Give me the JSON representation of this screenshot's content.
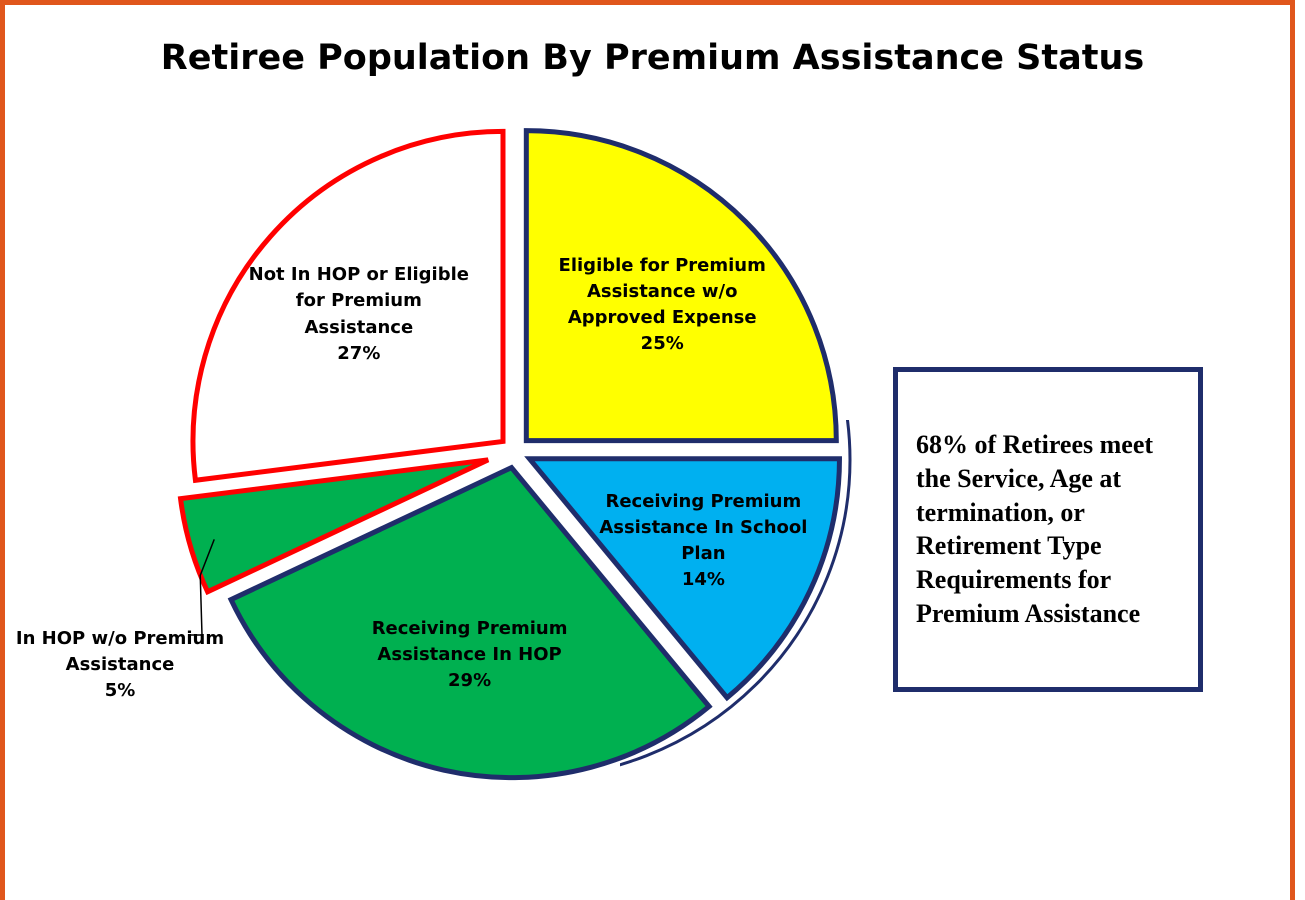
{
  "chart_data": {
    "type": "pie",
    "title": "Retiree Population By Premium Assistance Status",
    "categories": [
      "Eligible for Premium Assistance w/o Approved Expense",
      "Receiving Premium Assistance In School Plan",
      "Receiving Premium Assistance In HOP",
      "In HOP w/o Premium Assistance",
      "Not In HOP or Eligible for Premium Assistance"
    ],
    "values": [
      25,
      14,
      29,
      5,
      27
    ],
    "value_labels": [
      "25%",
      "14%",
      "29%",
      "5%",
      "27%"
    ],
    "colors": [
      "#ffff00",
      "#00b0f0",
      "#00b050",
      "#00b050",
      "#ffffff"
    ],
    "edge_colors": [
      "#1f2d6b",
      "#1f2d6b",
      "#1f2d6b",
      "#ff0000",
      "#ff0000"
    ],
    "annotation": "68% of Retirees meet the Service, Age at termination, or Retirement Type Requirements for Premium Assistance"
  }
}
